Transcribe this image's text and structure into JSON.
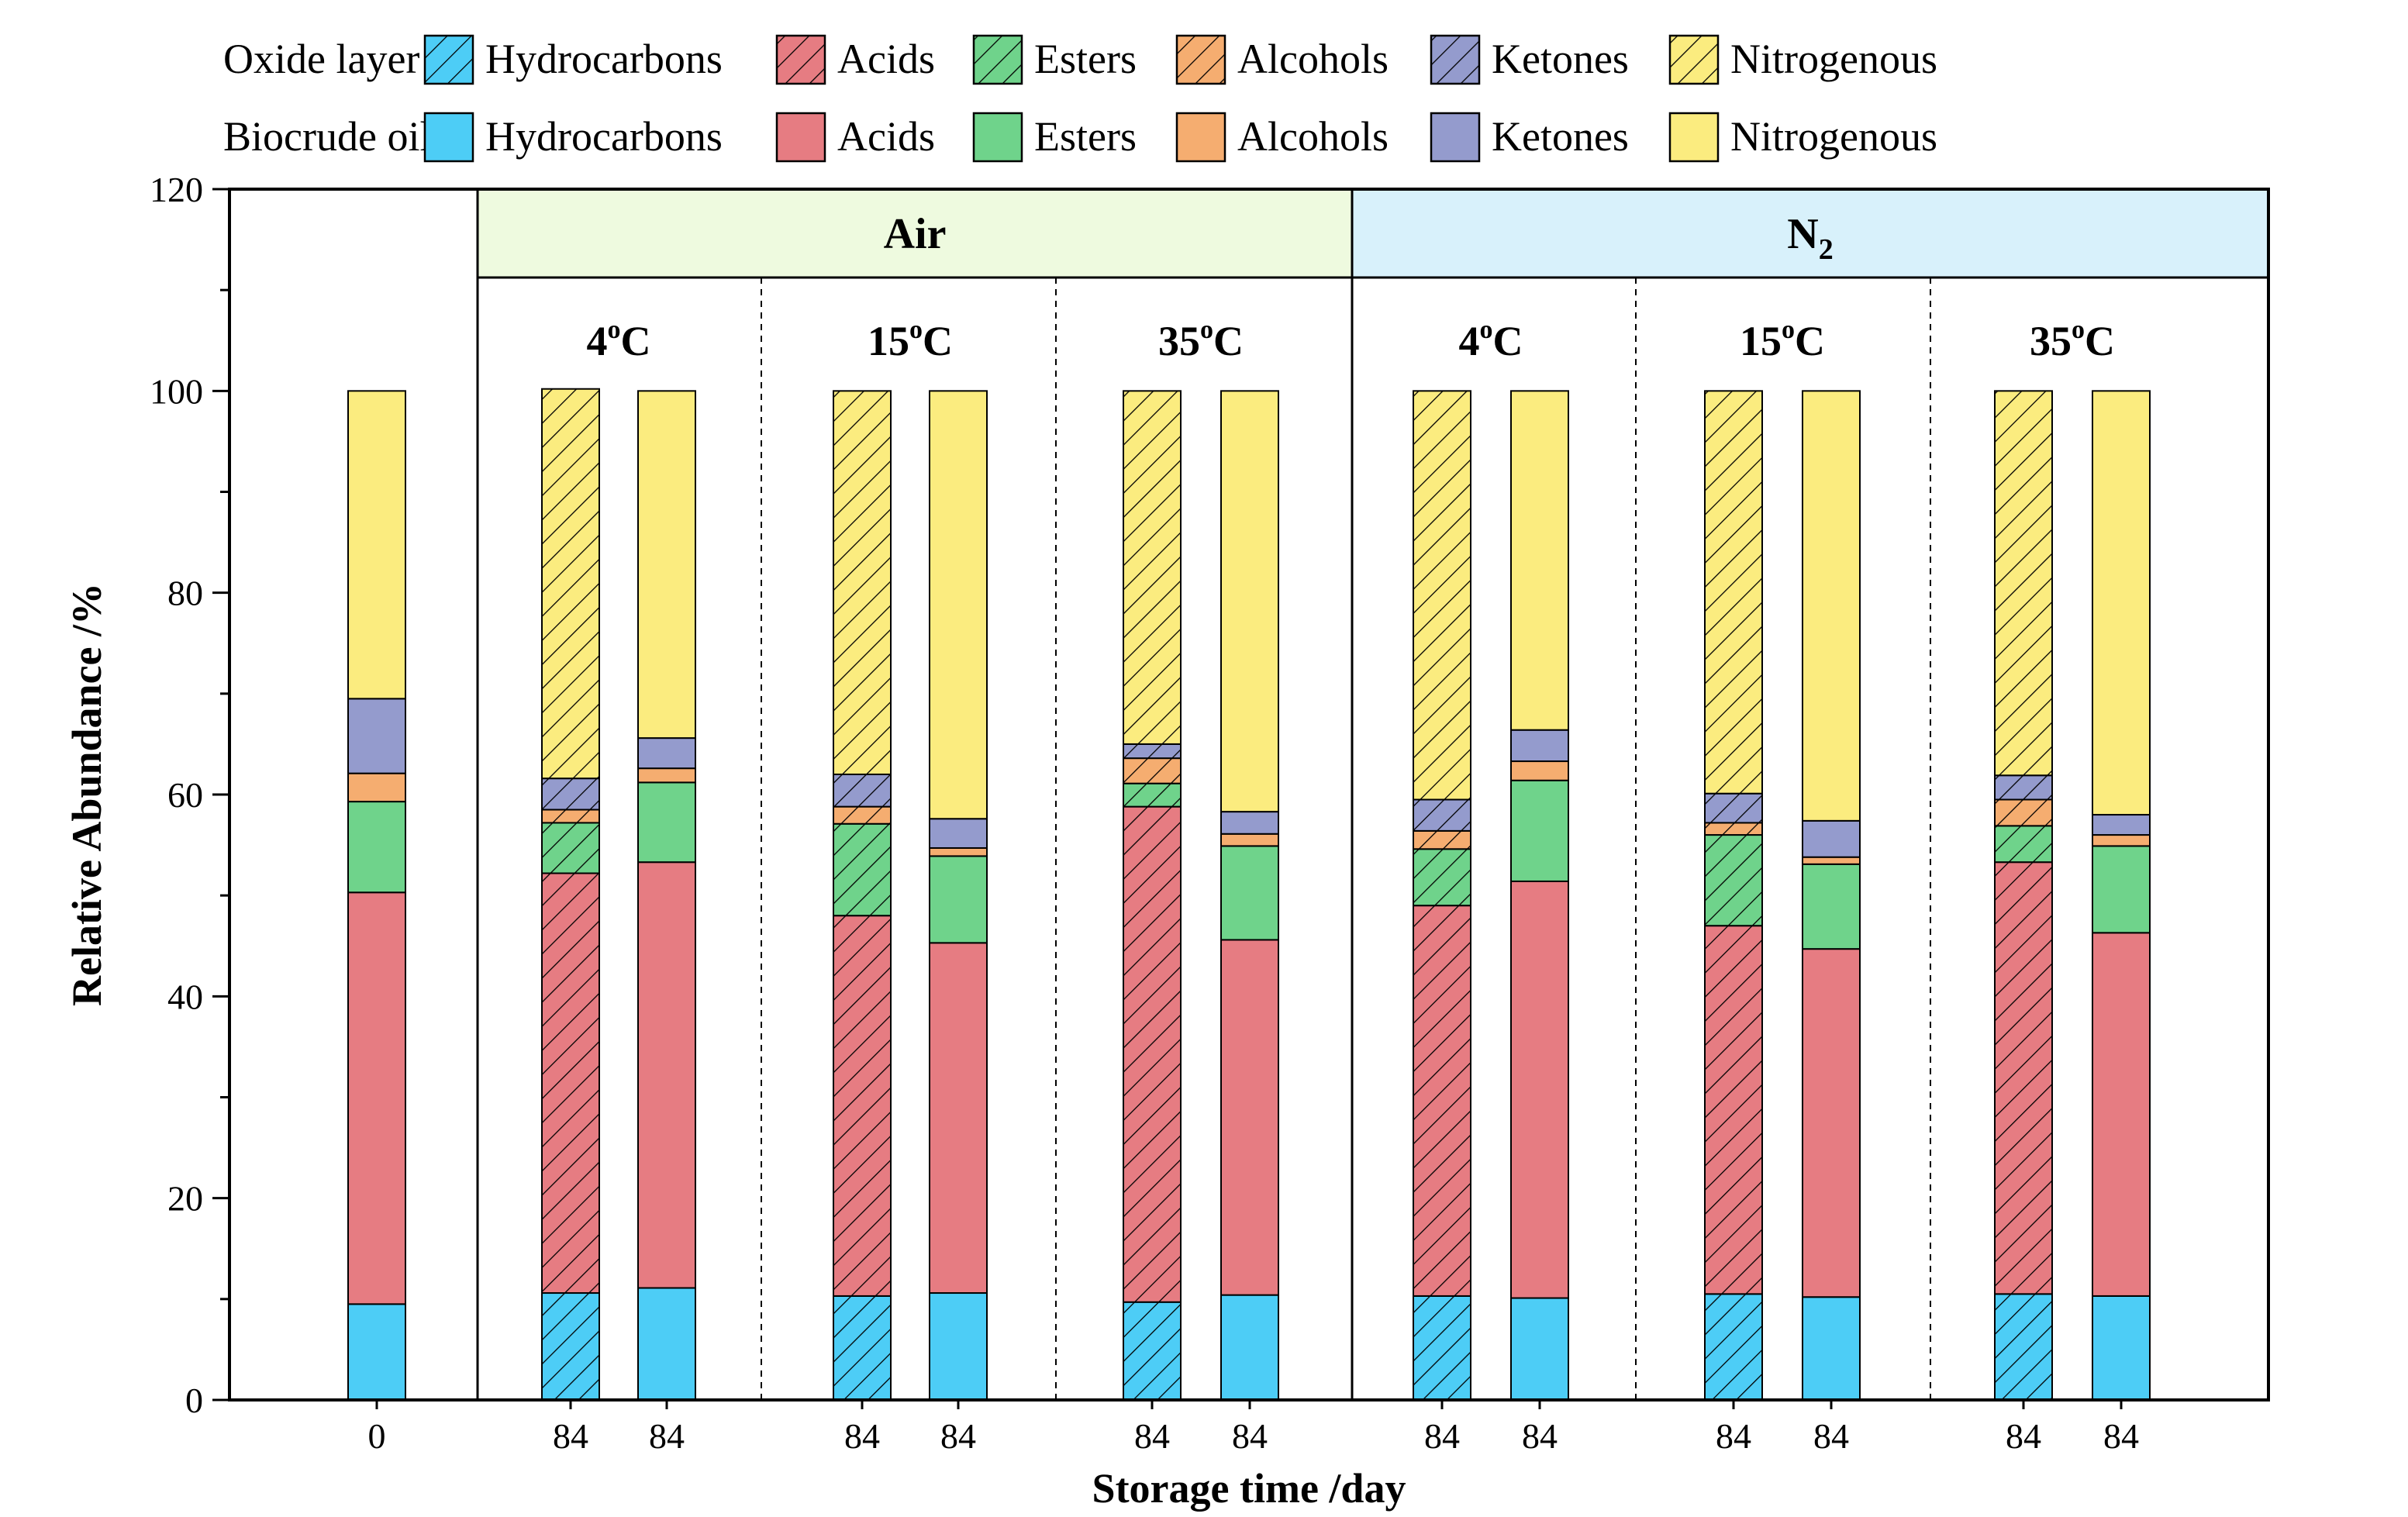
{
  "chart_data": {
    "type": "bar",
    "stacked": true,
    "title": "",
    "xlabel": "Storage time /day",
    "ylabel": "Relative Abundance /%",
    "ylim": [
      0,
      120
    ],
    "yticks": [
      0,
      20,
      40,
      60,
      80,
      100,
      120
    ],
    "grid": false,
    "legend": {
      "placement": "top-left",
      "row_labels": [
        "Oxide layer",
        "Biocrude oil"
      ],
      "entries": [
        "Hydrocarbons",
        "Acids",
        "Esters",
        "Alcohols",
        "Ketones",
        "Nitrogenous"
      ]
    },
    "categories": [
      "Hydrocarbons",
      "Acids",
      "Esters",
      "Alcohols",
      "Ketones",
      "Nitrogenous"
    ],
    "colors": {
      "Hydrocarbons": "#4dcdf6",
      "Acids": "#e67c82",
      "Esters": "#6fd38b",
      "Alcohols": "#f5ad70",
      "Ketones": "#949bcd",
      "Nitrogenous": "#fbec7f"
    },
    "atmospheres": [
      {
        "label": "Air",
        "color": "#eefadf"
      },
      {
        "label": "N",
        "subscript": "2",
        "color": "#d8f1fb"
      }
    ],
    "temperatures": [
      {
        "num": "4",
        "sup": "o",
        "unit": "C"
      },
      {
        "num": "15",
        "sup": "o",
        "unit": "C"
      },
      {
        "num": "35",
        "sup": "o",
        "unit": "C"
      },
      {
        "num": "4",
        "sup": "o",
        "unit": "C"
      },
      {
        "num": "15",
        "sup": "o",
        "unit": "C"
      },
      {
        "num": "35",
        "sup": "o",
        "unit": "C"
      }
    ],
    "bars": [
      {
        "x_label": "0",
        "layer": "Biocrude oil",
        "values": [
          9.5,
          40.8,
          9.0,
          2.8,
          7.4,
          30.5
        ]
      },
      {
        "x_label": "84",
        "layer": "Oxide layer",
        "atmosphere": "Air",
        "temperature": "4",
        "values": [
          10.6,
          41.6,
          5.0,
          1.3,
          3.1,
          38.6
        ]
      },
      {
        "x_label": "84",
        "layer": "Biocrude oil",
        "atmosphere": "Air",
        "temperature": "4",
        "values": [
          11.1,
          42.2,
          7.9,
          1.4,
          3.0,
          34.4
        ]
      },
      {
        "x_label": "84",
        "layer": "Oxide layer",
        "atmosphere": "Air",
        "temperature": "15",
        "values": [
          10.3,
          37.7,
          9.1,
          1.7,
          3.2,
          38.0
        ]
      },
      {
        "x_label": "84",
        "layer": "Biocrude oil",
        "atmosphere": "Air",
        "temperature": "15",
        "values": [
          10.6,
          34.7,
          8.6,
          0.8,
          2.9,
          42.4
        ]
      },
      {
        "x_label": "84",
        "layer": "Oxide layer",
        "atmosphere": "Air",
        "temperature": "35",
        "values": [
          9.7,
          49.1,
          2.3,
          2.5,
          1.4,
          35.0
        ]
      },
      {
        "x_label": "84",
        "layer": "Biocrude oil",
        "atmosphere": "Air",
        "temperature": "35",
        "values": [
          10.4,
          35.2,
          9.3,
          1.2,
          2.2,
          41.7
        ]
      },
      {
        "x_label": "84",
        "layer": "Oxide layer",
        "atmosphere": "N2",
        "temperature": "4",
        "values": [
          10.3,
          38.7,
          5.6,
          1.8,
          3.1,
          40.5
        ]
      },
      {
        "x_label": "84",
        "layer": "Biocrude oil",
        "atmosphere": "N2",
        "temperature": "4",
        "values": [
          10.1,
          41.3,
          10.0,
          1.9,
          3.1,
          33.6
        ]
      },
      {
        "x_label": "84",
        "layer": "Oxide layer",
        "atmosphere": "N2",
        "temperature": "15",
        "values": [
          10.5,
          36.5,
          9.0,
          1.2,
          2.9,
          39.9
        ]
      },
      {
        "x_label": "84",
        "layer": "Biocrude oil",
        "atmosphere": "N2",
        "temperature": "15",
        "values": [
          10.2,
          34.5,
          8.4,
          0.7,
          3.6,
          42.6
        ]
      },
      {
        "x_label": "84",
        "layer": "Oxide layer",
        "atmosphere": "N2",
        "temperature": "35",
        "values": [
          10.5,
          42.8,
          3.6,
          2.6,
          2.4,
          38.1
        ]
      },
      {
        "x_label": "84",
        "layer": "Biocrude oil",
        "atmosphere": "N2",
        "temperature": "35",
        "values": [
          10.3,
          36.0,
          8.6,
          1.1,
          2.0,
          42.0
        ]
      }
    ]
  }
}
